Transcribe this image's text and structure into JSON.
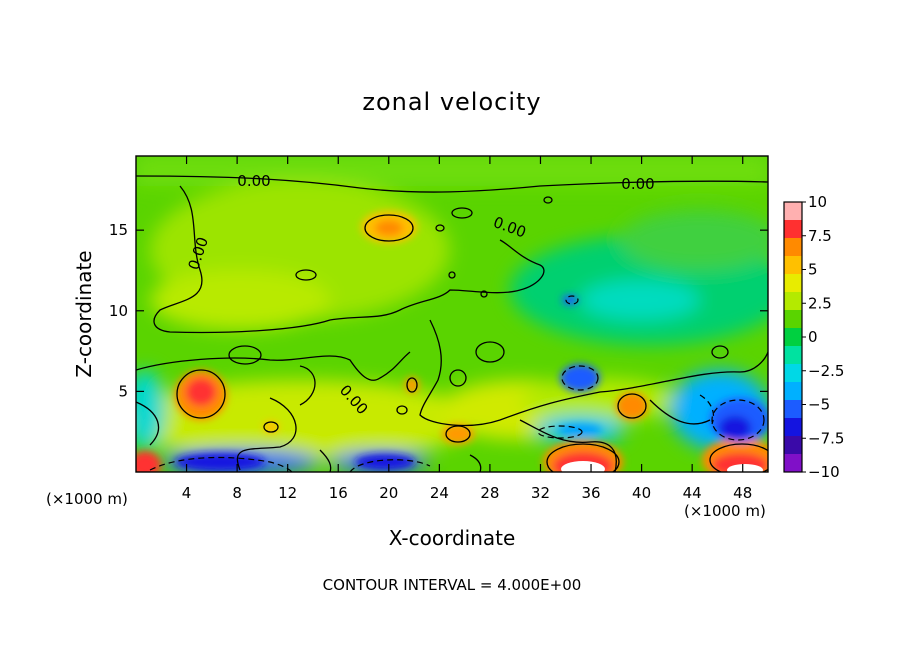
{
  "chart_data": {
    "type": "heatmap",
    "title": "zonal velocity",
    "xlabel": "X-coordinate",
    "ylabel": "Z-coordinate",
    "x_unit_label": "(×1000 m)",
    "xlim": [
      0,
      50
    ],
    "ylim": [
      0,
      19.6
    ],
    "x_ticks": [
      4,
      8,
      12,
      16,
      20,
      24,
      28,
      32,
      36,
      40,
      44,
      48
    ],
    "y_ticks": [
      5,
      10,
      15
    ],
    "colorbar": {
      "ticks": [
        10,
        7.5,
        5,
        2.5,
        0,
        -2.5,
        -5,
        -7.5,
        -10
      ],
      "range": [
        -10,
        10
      ],
      "colors": [
        "#ffb0b0",
        "#ff3030",
        "#ff8a00",
        "#ffc000",
        "#e8ec00",
        "#b4ea00",
        "#5ad400",
        "#00d040",
        "#00e2a0",
        "#00d8e6",
        "#00b0ff",
        "#1c5cff",
        "#1414e0",
        "#3a0aa8",
        "#8010c8"
      ]
    },
    "contour_labels": [
      "0.00",
      "0.00",
      "0.00",
      "0.00",
      "0.00"
    ],
    "contour_interval_note": "CONTOUR INTERVAL = 4.000E+00",
    "features": [
      {
        "x": 5.5,
        "z": 4.9,
        "value": 7
      },
      {
        "x": 19.5,
        "z": 15.3,
        "value": 6
      },
      {
        "x": 35,
        "z": 0.3,
        "value": 12
      },
      {
        "x": 47.5,
        "z": 0.4,
        "value": 11
      },
      {
        "x": 1,
        "z": 0.5,
        "value": 8
      },
      {
        "x": 6,
        "z": 0.6,
        "value": -8
      },
      {
        "x": 20,
        "z": 0.5,
        "value": -7
      },
      {
        "x": 35,
        "z": 5.8,
        "value": -6
      },
      {
        "x": 46.5,
        "z": 3.2,
        "value": -7
      },
      {
        "x": 39,
        "z": 4.2,
        "value": 6
      },
      {
        "x": 25.5,
        "z": 2.6,
        "value": 5
      },
      {
        "x": 22,
        "z": 5.6,
        "value": 5
      }
    ]
  }
}
